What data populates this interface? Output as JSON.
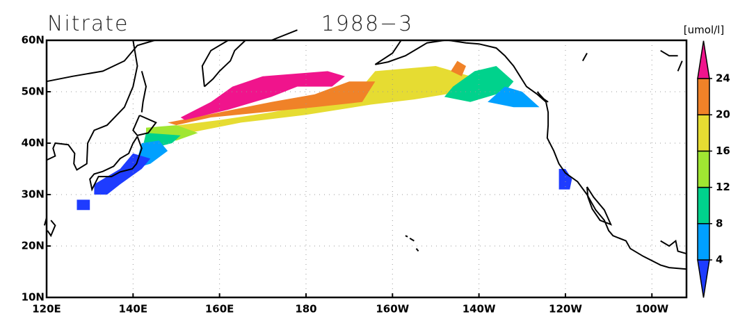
{
  "chart_data": {
    "type": "map",
    "title": "Nitrate",
    "subtitle": "1988−3",
    "colorbar_label": "[umol/l]",
    "xlim": [
      120,
      268
    ],
    "ylim": [
      10,
      60
    ],
    "grid": true,
    "xticks": [
      {
        "value": 120,
        "label": "120E"
      },
      {
        "value": 140,
        "label": "140E"
      },
      {
        "value": 160,
        "label": "160E"
      },
      180,
      {
        "value": 200,
        "label": "160W"
      },
      {
        "value": 220,
        "label": "140W"
      },
      {
        "value": 240,
        "label": "120W"
      },
      {
        "value": 260,
        "label": "100W"
      }
    ],
    "yticks": [
      {
        "value": 10,
        "label": "10N"
      },
      {
        "value": 20,
        "label": "20N"
      },
      {
        "value": 30,
        "label": "30N"
      },
      {
        "value": 40,
        "label": "40N"
      },
      {
        "value": 50,
        "label": "50N"
      },
      {
        "value": 60,
        "label": "60N"
      }
    ],
    "levels": [
      4,
      8,
      12,
      16,
      20,
      24
    ],
    "colors": [
      "#1e3cff",
      "#00a0ff",
      "#00d28c",
      "#a0e632",
      "#e6dc32",
      "#f08228",
      "#f0148c"
    ]
  }
}
